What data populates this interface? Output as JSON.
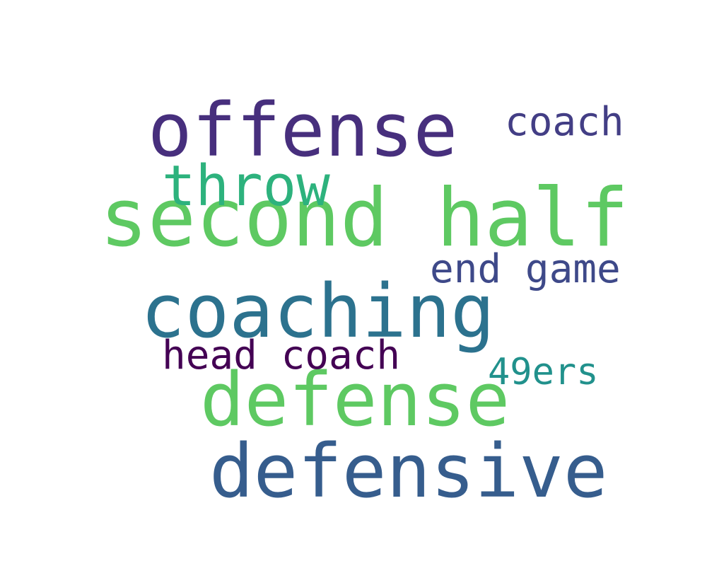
{
  "words": [
    {
      "text": "second half",
      "color": "#5ec962"
    },
    {
      "text": "offense",
      "color": "#472f7d"
    },
    {
      "text": "coaching",
      "color": "#2c728e"
    },
    {
      "text": "defense",
      "color": "#5ec962"
    },
    {
      "text": "defensive",
      "color": "#365d8d"
    },
    {
      "text": "throw",
      "color": "#2db27d"
    },
    {
      "text": "coach",
      "color": "#433e85"
    },
    {
      "text": "end game",
      "color": "#3e4989"
    },
    {
      "text": "head coach",
      "color": "#440154"
    },
    {
      "text": "49ers",
      "color": "#21918c"
    }
  ]
}
